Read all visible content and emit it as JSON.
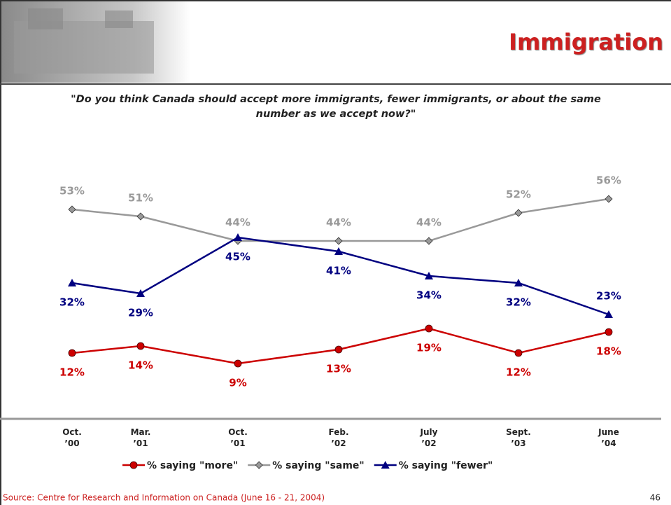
{
  "header": {
    "title": "Immigration"
  },
  "chart_data": {
    "type": "line",
    "title": "\"Do you think Canada should accept more immigrants, fewer immigrants, or about the same number as we accept now?\"",
    "categories": [
      "Oct. ’00",
      "Mar. ’01",
      "Oct. ’01",
      "Feb. ’02",
      "July ’02",
      "Sept. ’03",
      "June ’04"
    ],
    "series": [
      {
        "name": "% saying \"more\"",
        "color": "#cc0000",
        "marker": "circle",
        "values": [
          12,
          14,
          9,
          13,
          19,
          12,
          18
        ],
        "value_labels": [
          "12%",
          "14%",
          "9%",
          "13%",
          "19%",
          "12%",
          "18%"
        ]
      },
      {
        "name": "% saying \"same\"",
        "color": "#999999",
        "marker": "diamond",
        "values": [
          53,
          51,
          44,
          44,
          44,
          52,
          56
        ],
        "value_labels": [
          "53%",
          "51%",
          "44%",
          "44%",
          "44%",
          "52%",
          "56%"
        ]
      },
      {
        "name": "% saying \"fewer\"",
        "color": "#000080",
        "marker": "triangle",
        "values": [
          32,
          29,
          45,
          41,
          34,
          32,
          23
        ],
        "value_labels": [
          "32%",
          "29%",
          "45%",
          "41%",
          "34%",
          "32%",
          "23%"
        ]
      }
    ]
  },
  "source": "Source: Centre for Research and Information on Canada (June 16 - 21, 2004)",
  "page_number": "46"
}
